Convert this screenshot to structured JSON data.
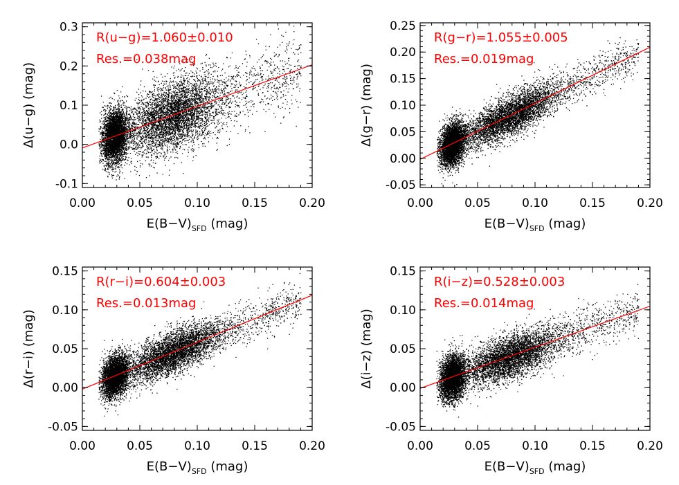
{
  "figure": {
    "panel_count": 4,
    "accent_color": "#ff0000",
    "point_color": "#000000"
  },
  "chart_data": [
    {
      "type": "scatter",
      "id": "ug",
      "ylabel": "Δ(u−g) (mag)",
      "xlabel_main": "E(B−V)",
      "xlabel_sub": "SFD",
      "xlabel_unit": "(mag)",
      "xlim": [
        0.0,
        0.2
      ],
      "ylim": [
        -0.11,
        0.31
      ],
      "xticks": [
        "0.00",
        "0.05",
        "0.10",
        "0.15",
        "0.20"
      ],
      "yticks": [
        {
          "value": -0.1,
          "label": "-0.1"
        },
        {
          "value": 0.0,
          "label": "0.0"
        },
        {
          "value": 0.1,
          "label": "0.1"
        },
        {
          "value": 0.2,
          "label": "0.2"
        },
        {
          "value": 0.3,
          "label": "0.3"
        }
      ],
      "fit": {
        "slope": 1.06,
        "intercept": -0.009,
        "color": "#ff0000"
      },
      "annotation_fit": "R(u−g)=1.060±0.010",
      "annotation_res": "Res.=0.038mag",
      "scatter_model": {
        "residual_sigma": 0.038,
        "seed": 11
      }
    },
    {
      "type": "scatter",
      "id": "gr",
      "ylabel": "Δ(g−r) (mag)",
      "xlabel_main": "E(B−V)",
      "xlabel_sub": "SFD",
      "xlabel_unit": "(mag)",
      "xlim": [
        0.0,
        0.2
      ],
      "ylim": [
        -0.055,
        0.255
      ],
      "xticks": [
        "0.00",
        "0.05",
        "0.10",
        "0.15",
        "0.20"
      ],
      "yticks": [
        {
          "value": -0.05,
          "label": "-0.05"
        },
        {
          "value": 0.0,
          "label": "0.00"
        },
        {
          "value": 0.05,
          "label": "0.05"
        },
        {
          "value": 0.1,
          "label": "0.10"
        },
        {
          "value": 0.15,
          "label": "0.15"
        },
        {
          "value": 0.2,
          "label": "0.20"
        },
        {
          "value": 0.25,
          "label": "0.25"
        }
      ],
      "fit": {
        "slope": 1.055,
        "intercept": -0.002,
        "color": "#ff0000"
      },
      "annotation_fit": "R(g−r)=1.055±0.005",
      "annotation_res": "Res.=0.019mag",
      "scatter_model": {
        "residual_sigma": 0.019,
        "seed": 23
      }
    },
    {
      "type": "scatter",
      "id": "ri",
      "ylabel": "Δ(r−i) (mag)",
      "xlabel_main": "E(B−V)",
      "xlabel_sub": "SFD",
      "xlabel_unit": "(mag)",
      "xlim": [
        0.0,
        0.2
      ],
      "ylim": [
        -0.055,
        0.155
      ],
      "xticks": [
        "0.00",
        "0.05",
        "0.10",
        "0.15",
        "0.20"
      ],
      "yticks": [
        {
          "value": -0.05,
          "label": "-0.05"
        },
        {
          "value": 0.0,
          "label": "0.00"
        },
        {
          "value": 0.05,
          "label": "0.05"
        },
        {
          "value": 0.1,
          "label": "0.10"
        },
        {
          "value": 0.15,
          "label": "0.15"
        }
      ],
      "fit": {
        "slope": 0.604,
        "intercept": -0.002,
        "color": "#ff0000"
      },
      "annotation_fit": "R(r−i)=0.604±0.003",
      "annotation_res": "Res.=0.013mag",
      "scatter_model": {
        "residual_sigma": 0.013,
        "seed": 37
      }
    },
    {
      "type": "scatter",
      "id": "iz",
      "ylabel": "Δ(i−z) (mag)",
      "xlabel_main": "E(B−V)",
      "xlabel_sub": "SFD",
      "xlabel_unit": "(mag)",
      "xlim": [
        0.0,
        0.2
      ],
      "ylim": [
        -0.055,
        0.155
      ],
      "xticks": [
        "0.00",
        "0.05",
        "0.10",
        "0.15",
        "0.20"
      ],
      "yticks": [
        {
          "value": -0.05,
          "label": "-0.05"
        },
        {
          "value": 0.0,
          "label": "0.00"
        },
        {
          "value": 0.05,
          "label": "0.05"
        },
        {
          "value": 0.1,
          "label": "0.10"
        },
        {
          "value": 0.15,
          "label": "0.15"
        }
      ],
      "fit": {
        "slope": 0.528,
        "intercept": -0.001,
        "color": "#ff0000"
      },
      "annotation_fit": "R(i−z)=0.528±0.003",
      "annotation_res": "Res.=0.014mag",
      "scatter_model": {
        "residual_sigma": 0.014,
        "seed": 53
      }
    }
  ]
}
